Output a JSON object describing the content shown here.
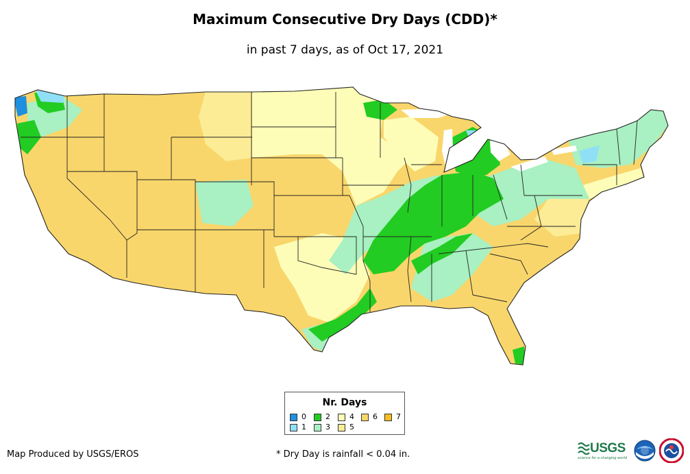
{
  "title": "Maximum Consecutive Dry Days (CDD)*",
  "subtitle": "in past 7 days, as of Oct 17, 2021",
  "legend": {
    "title": "Nr. Days",
    "items": [
      {
        "label": "0",
        "color": "#1f8fe0"
      },
      {
        "label": "1",
        "color": "#8fe0f7"
      },
      {
        "label": "2",
        "color": "#22cc22"
      },
      {
        "label": "3",
        "color": "#a9f0c2"
      },
      {
        "label": "4",
        "color": "#fdfdb8"
      },
      {
        "label": "5",
        "color": "#fcec96"
      },
      {
        "label": "6",
        "color": "#f9d66b"
      },
      {
        "label": "7",
        "color": "#f7be1e"
      }
    ]
  },
  "footer": {
    "credit": "Map Produced by USGS/EROS",
    "note": "* Dry Day is rainfall < 0.04 in."
  },
  "logos": {
    "usgs_word": "USGS",
    "usgs_tagline": "science for a changing world",
    "noaa_icon": "noaa-logo-icon",
    "nws_icon": "national-weather-service-logo-icon"
  },
  "map_colors": {
    "base": "#f9d66b",
    "yellow_light": "#fdfdb8",
    "yellow_mid": "#fcec96",
    "green": "#22cc22",
    "mint": "#a9f0c2",
    "cyan": "#8fe0f7",
    "blue": "#1f8fe0",
    "lakes": "#ffffff",
    "state_lines": "#222222"
  }
}
